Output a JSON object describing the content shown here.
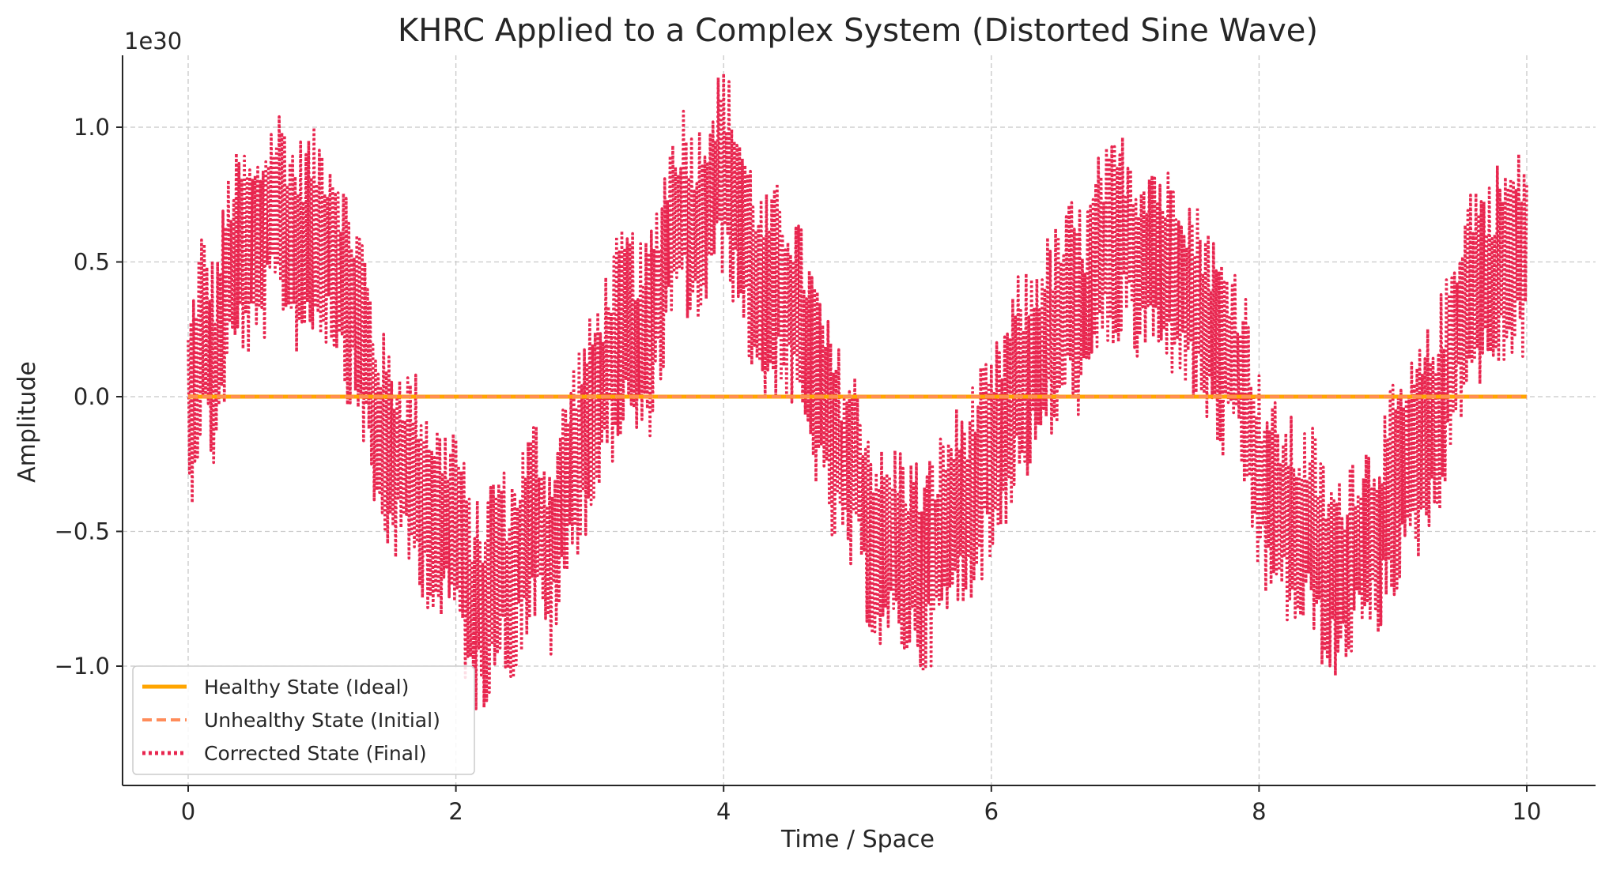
{
  "chart_data": {
    "type": "line",
    "title": "KHRC Applied to a Complex System (Distorted Sine Wave)",
    "xlabel": "Time / Space",
    "ylabel": "Amplitude",
    "y_offset_label": "1e30",
    "xlim": [
      -0.5,
      12.5
    ],
    "ylim": [
      -1.45,
      1.3
    ],
    "x_ticks": [
      0,
      2,
      4,
      6,
      8,
      10
    ],
    "x_tick_labels": [
      "0",
      "2",
      "4",
      "6",
      "8",
      "10"
    ],
    "y_ticks": [
      1.0,
      0.5,
      0.0,
      -0.5,
      -1.0
    ],
    "y_tick_labels": [
      "1.0",
      "0.5",
      "0.0",
      "−0.5",
      "−1.0"
    ],
    "grid": true,
    "legend_position": "lower-left",
    "series": [
      {
        "name": "Healthy State (Ideal)",
        "color": "#ffa500",
        "style": "solid",
        "x": [
          0,
          10
        ],
        "y": [
          0,
          0
        ]
      },
      {
        "name": "Unhealthy State (Initial)",
        "color": "#ff8c5a",
        "style": "dashed",
        "x": [
          0,
          10
        ],
        "y": [
          0,
          0
        ]
      },
      {
        "name": "Corrected State (Final)",
        "color": "#e8264f",
        "style": "dotted",
        "x": [
          0.0,
          0.1,
          0.2,
          0.3,
          0.4,
          0.5,
          0.6,
          0.7,
          0.8,
          0.9,
          1.0,
          1.1,
          1.2,
          1.3,
          1.4,
          1.5,
          1.6,
          1.7,
          1.8,
          1.9,
          2.0,
          2.1,
          2.2,
          2.3,
          2.4,
          2.5,
          2.6,
          2.7,
          2.8,
          2.9,
          3.0,
          3.1,
          3.2,
          3.3,
          3.4,
          3.5,
          3.6,
          3.7,
          3.8,
          3.9,
          4.0,
          4.1,
          4.2,
          4.3,
          4.4,
          4.5,
          4.6,
          4.7,
          4.8,
          4.9,
          5.0,
          5.1,
          5.2,
          5.3,
          5.4,
          5.5,
          5.6,
          5.7,
          5.8,
          5.9,
          6.0,
          6.1,
          6.2,
          6.3,
          6.4,
          6.5,
          6.6,
          6.7,
          6.8,
          6.9,
          7.0,
          7.1,
          7.2,
          7.3,
          7.4,
          7.5,
          7.6,
          7.7,
          7.8,
          7.9,
          8.0,
          8.1,
          8.2,
          8.3,
          8.4,
          8.5,
          8.6,
          8.7,
          8.8,
          8.9,
          9.0,
          9.1,
          9.2,
          9.3,
          9.4,
          9.5,
          9.6,
          9.7,
          9.8,
          9.9,
          10.0
        ],
        "y": [
          -0.1,
          0.25,
          0.1,
          0.45,
          0.55,
          0.5,
          0.65,
          0.7,
          0.55,
          0.6,
          0.6,
          0.55,
          0.35,
          0.25,
          -0.1,
          -0.2,
          -0.25,
          -0.3,
          -0.4,
          -0.5,
          -0.45,
          -0.75,
          -0.8,
          -0.6,
          -0.7,
          -0.55,
          -0.45,
          -0.6,
          -0.4,
          -0.2,
          -0.1,
          0.05,
          0.2,
          0.25,
          0.15,
          0.35,
          0.6,
          0.7,
          0.6,
          0.75,
          0.85,
          0.7,
          0.5,
          0.35,
          0.4,
          0.35,
          0.2,
          0.05,
          -0.15,
          -0.25,
          -0.3,
          -0.5,
          -0.6,
          -0.55,
          -0.6,
          -0.65,
          -0.55,
          -0.45,
          -0.4,
          -0.3,
          -0.25,
          -0.1,
          0.05,
          0.1,
          0.2,
          0.25,
          0.35,
          0.3,
          0.5,
          0.55,
          0.6,
          0.5,
          0.55,
          0.45,
          0.5,
          0.35,
          0.3,
          0.15,
          0.15,
          0.0,
          -0.3,
          -0.4,
          -0.45,
          -0.5,
          -0.5,
          -0.65,
          -0.7,
          -0.55,
          -0.55,
          -0.5,
          -0.35,
          -0.3,
          -0.2,
          -0.1,
          0.05,
          0.3,
          0.45,
          0.4,
          0.5,
          0.5,
          0.55
        ],
        "noise_amplitude": 0.4,
        "note": "values shown are the underlying trend; dense high-frequency oscillation of about ±0.4 is drawn around it"
      }
    ]
  }
}
